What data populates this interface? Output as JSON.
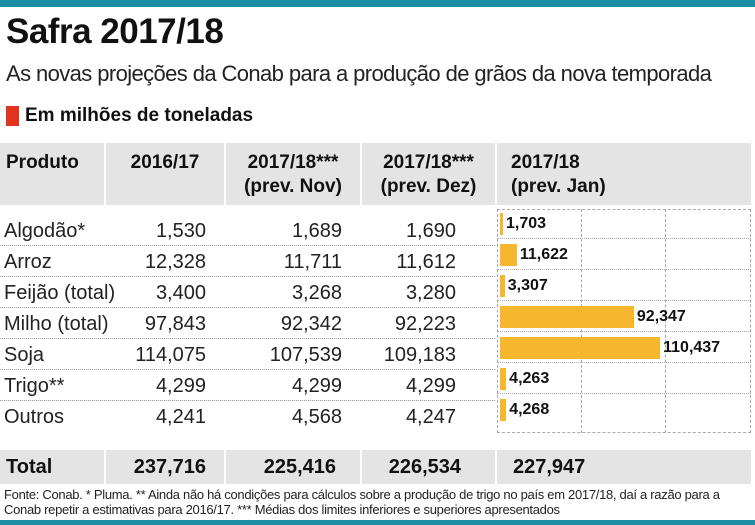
{
  "title": "Safra 2017/18",
  "subtitle": "As novas projeções da Conab para a produção de grãos da nova temporada",
  "unit_label": "Em milhões de toneladas",
  "colors": {
    "accent_rule": "#1c8ea3",
    "unit_marker": "#e0341e",
    "bar": "#f6b62d",
    "header_bg": "#e4e4e4"
  },
  "headers": {
    "produto": "Produto",
    "c2016": "2016/17",
    "nov_l1": "2017/18***",
    "nov_l2": "(prev. Nov)",
    "dez_l1": "2017/18***",
    "dez_l2": "(prev. Dez)",
    "jan_l1": "2017/18",
    "jan_l2": "(prev. Jan)"
  },
  "rows": [
    {
      "produto": "Algodão*",
      "c2016": "1,530",
      "nov": "1,689",
      "dez": "1,690",
      "jan": "1,703"
    },
    {
      "produto": "Arroz",
      "c2016": "12,328",
      "nov": "11,711",
      "dez": "11,612",
      "jan": "11,622"
    },
    {
      "produto": "Feijão (total)",
      "c2016": "3,400",
      "nov": "3,268",
      "dez": "3,280",
      "jan": "3,307"
    },
    {
      "produto": "Milho (total)",
      "c2016": "97,843",
      "nov": "92,342",
      "dez": "92,223",
      "jan": "92,347"
    },
    {
      "produto": "Soja",
      "c2016": "114,075",
      "nov": "107,539",
      "dez": "109,183",
      "jan": "110,437"
    },
    {
      "produto": "Trigo**",
      "c2016": "4,299",
      "nov": "4,299",
      "dez": "4,299",
      "jan": "4,263"
    },
    {
      "produto": "Outros",
      "c2016": "4,241",
      "nov": "4,568",
      "dez": "4,247",
      "jan": "4,268"
    }
  ],
  "total": {
    "label": "Total",
    "c2016": "237,716",
    "nov": "225,416",
    "dez": "226,534",
    "jan": "227,947"
  },
  "chart_data": {
    "type": "bar",
    "orientation": "horizontal",
    "categories": [
      "Algodão*",
      "Arroz",
      "Feijão (total)",
      "Milho (total)",
      "Soja",
      "Trigo**",
      "Outros"
    ],
    "values": [
      1.703,
      11.622,
      3.307,
      92.347,
      110.437,
      4.263,
      4.268
    ],
    "value_labels": [
      "1,703",
      "11,622",
      "3,307",
      "92,347",
      "110,437",
      "4,263",
      "4,268"
    ],
    "xlim": [
      0,
      120
    ],
    "grid": true,
    "xlabel": "",
    "ylabel": ""
  },
  "footnote": "Fonte: Conab. * Pluma. ** Ainda não há condições para cálculos sobre a produção de trigo no país em 2017/18, daí a razão para  a Conab repetir a estimativas para 2016/17. *** Médias dos limites inferiores e superiores apresentados"
}
